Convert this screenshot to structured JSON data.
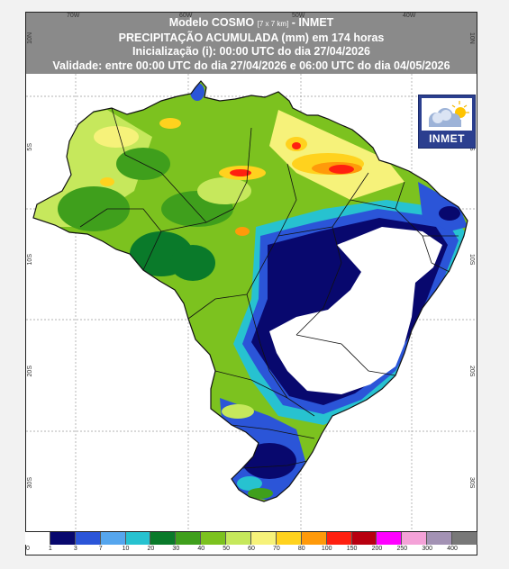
{
  "header": {
    "line1_a": "Modelo COSMO ",
    "line1_res": "[7 x 7 km]",
    "line1_b": " - INMET",
    "line2": "PRECIPITAÇÃO ACUMULADA (mm) em 174 horas",
    "line3": "Inicialização (i): 00:00 UTC do dia 27/04/2026",
    "line4": "Validade: entre 00:00 UTC do dia 27/04/2026 e 06:00 UTC do dia 04/05/2026"
  },
  "grid_labels": {
    "top": [
      "70W",
      "60W",
      "50W",
      "40W"
    ],
    "left": [
      "10N",
      "5S",
      "10S",
      "20S",
      "30S"
    ],
    "right": [
      "10N",
      "5S",
      "10S",
      "20S",
      "30S"
    ]
  },
  "logo": {
    "text": "INMET",
    "icon": "cloud-sun-icon"
  },
  "legend": {
    "labels": [
      "0",
      "1",
      "3",
      "7",
      "10",
      "20",
      "30",
      "40",
      "50",
      "60",
      "70",
      "80",
      "100",
      "150",
      "200",
      "250",
      "300",
      "400"
    ],
    "colors": [
      "#ffffff",
      "#08086e",
      "#2b55d8",
      "#56a6ee",
      "#27c2d0",
      "#0a7a2a",
      "#3f9f1c",
      "#7cc21f",
      "#c6e85c",
      "#f6f27a",
      "#ffd21e",
      "#ff9a0a",
      "#ff2010",
      "#b80010",
      "#ff00ff",
      "#f4a2d8",
      "#a392b4",
      "#787878"
    ]
  }
}
